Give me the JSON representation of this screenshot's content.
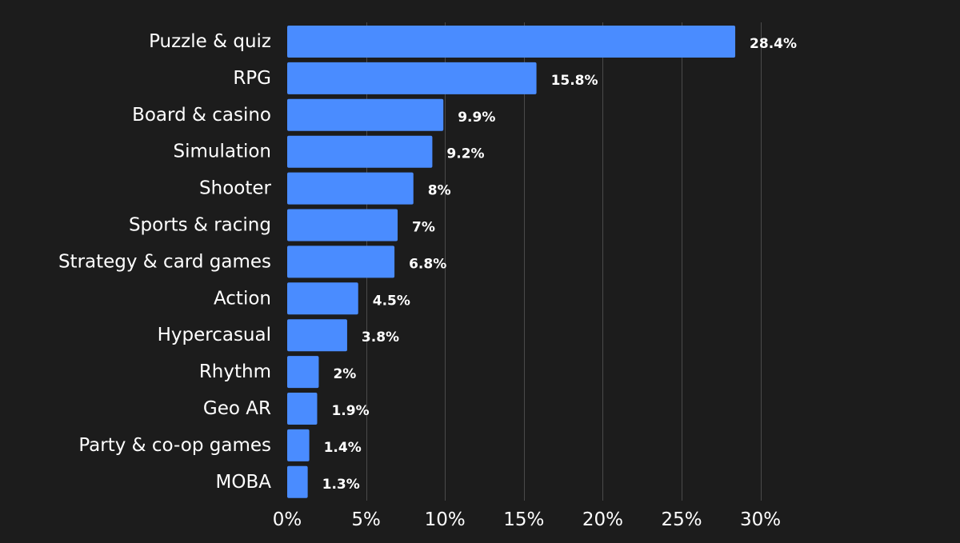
{
  "chart_data": {
    "type": "bar",
    "orientation": "horizontal",
    "categories": [
      "Puzzle & quiz",
      "RPG",
      "Board & casino",
      "Simulation",
      "Shooter",
      "Sports & racing",
      "Strategy & card games",
      "Action",
      "Hypercasual",
      "Rhythm",
      "Geo AR",
      "Party & co-op games",
      "MOBA"
    ],
    "values": [
      28.4,
      15.8,
      9.9,
      9.2,
      8,
      7,
      6.8,
      4.5,
      3.8,
      2,
      1.9,
      1.4,
      1.3
    ],
    "value_labels": [
      "28.4%",
      "15.8%",
      "9.9%",
      "9.2%",
      "8%",
      "7%",
      "6.8%",
      "4.5%",
      "3.8%",
      "2%",
      "1.9%",
      "1.4%",
      "1.3%"
    ],
    "xlim": [
      0,
      30
    ],
    "x_ticks": [
      0,
      5,
      10,
      15,
      20,
      25,
      30
    ],
    "x_tick_labels": [
      "0%",
      "5%",
      "10%",
      "15%",
      "20%",
      "25%",
      "30%"
    ],
    "title": "",
    "xlabel": "",
    "ylabel": "",
    "grid": "vertical",
    "legend": "none",
    "colors": {
      "background": "#1c1c1c",
      "bar": "#4a8cff",
      "grid": "#4a4a4a",
      "text": "#ffffff"
    }
  }
}
